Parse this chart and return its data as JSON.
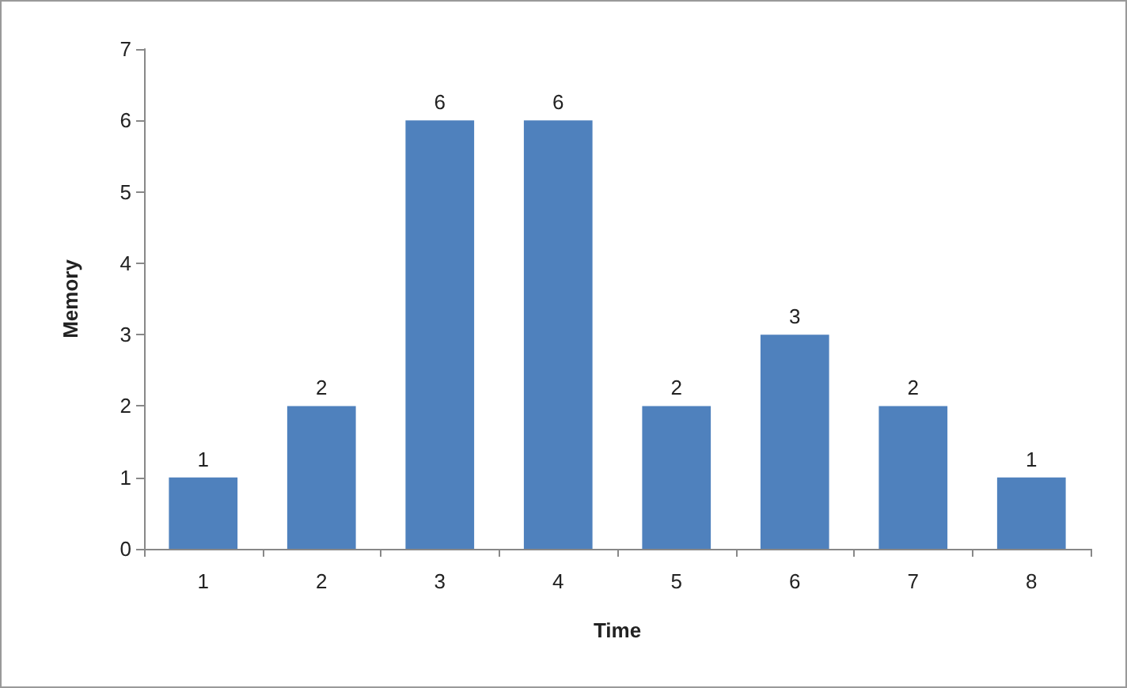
{
  "chart_data": {
    "type": "bar",
    "xlabel": "Time",
    "ylabel": "Memory",
    "categories": [
      "1",
      "2",
      "3",
      "4",
      "5",
      "6",
      "7",
      "8"
    ],
    "values": [
      1,
      2,
      6,
      6,
      2,
      3,
      2,
      1
    ],
    "color": "#4f81bd",
    "ylim": [
      0,
      7
    ],
    "yticks": [
      0,
      1,
      2,
      3,
      4,
      5,
      6,
      7
    ],
    "grid": false,
    "data_labels": true
  }
}
